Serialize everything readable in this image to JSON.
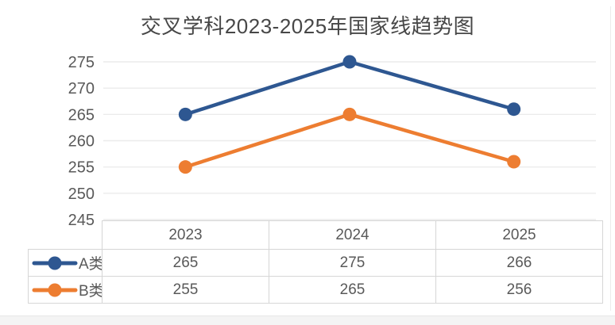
{
  "chart_data": {
    "type": "line",
    "title": "交叉学科2023-2025年国家线趋势图",
    "categories": [
      "2023",
      "2024",
      "2025"
    ],
    "series": [
      {
        "name": "A类",
        "values": [
          265,
          275,
          266
        ],
        "color": "#2e5791"
      },
      {
        "name": "B类",
        "values": [
          255,
          265,
          256
        ],
        "color": "#ed7d31"
      }
    ],
    "xlabel": "",
    "ylabel": "",
    "ylim": [
      245,
      275
    ],
    "ytick_step": 5,
    "grid": true,
    "legend_position": "table-left"
  },
  "colors": {
    "background": "#ffffff",
    "title_text": "#474747",
    "axis_text": "#595959",
    "grid": "#ebebeb",
    "table_border": "#d6d6d6",
    "footer_strip": "#f4f4f4"
  }
}
